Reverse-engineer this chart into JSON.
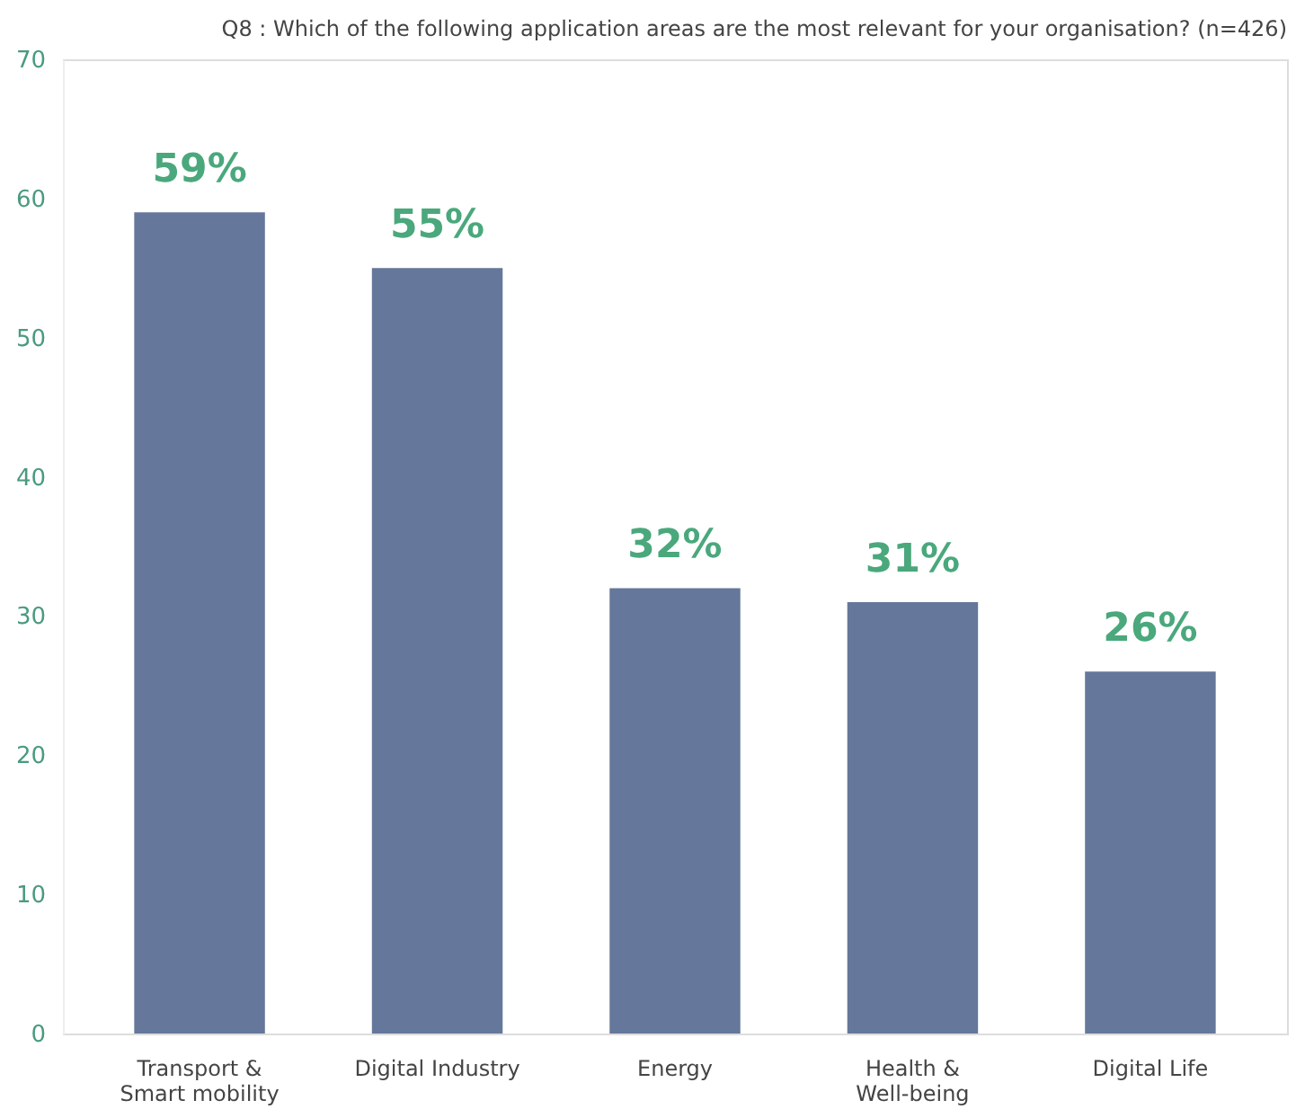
{
  "chart_data": {
    "type": "bar",
    "title": "Q8 : Which of the following application areas are the most relevant for your organisation?  (n=426)",
    "categories": [
      "Transport  &\nSmart mobility",
      "Digital Industry",
      "Energy",
      "Health &\nWell-being",
      "Digital Life"
    ],
    "values": [
      59,
      55,
      32,
      31,
      26
    ],
    "value_labels": [
      "59%",
      "55%",
      "32%",
      "31%",
      "26%"
    ],
    "color": "#65779a",
    "ylim": [
      0,
      70
    ],
    "yticks": [
      0,
      10,
      20,
      30,
      40,
      50,
      60,
      70
    ],
    "grid": false
  }
}
